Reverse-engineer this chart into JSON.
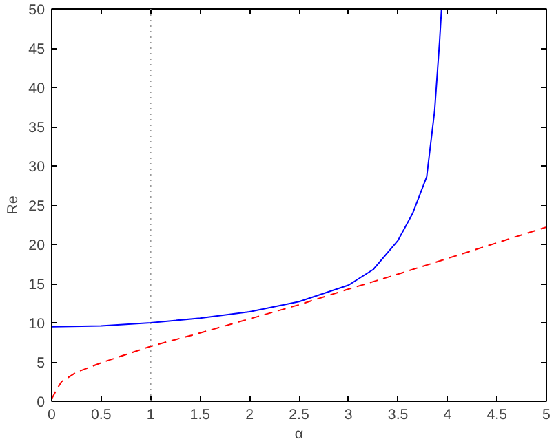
{
  "chart_data": {
    "type": "line",
    "xlabel": "α",
    "ylabel": "Re",
    "xlim": [
      0,
      5
    ],
    "ylim": [
      0,
      50
    ],
    "xticks": [
      0,
      0.5,
      1,
      1.5,
      2,
      2.5,
      3,
      3.5,
      4,
      4.5,
      5
    ],
    "yticks": [
      0,
      5,
      10,
      15,
      20,
      25,
      30,
      35,
      40,
      45,
      50
    ],
    "grid": false,
    "series": [
      {
        "color": "#0000ff",
        "line_style": "solid",
        "x": [
          0,
          0.5,
          1,
          1.5,
          2,
          2.5,
          3,
          3.25,
          3.5,
          3.65,
          3.79,
          3.87,
          3.92,
          3.94
        ],
        "values": [
          9.5,
          9.6,
          10,
          10.6,
          11.4,
          12.7,
          14.8,
          16.8,
          20.5,
          24,
          28.6,
          37,
          45.8,
          50
        ]
      },
      {
        "color": "#ff0000",
        "line_style": "dashed",
        "x": [
          0,
          0.05,
          0.1,
          0.25,
          0.5,
          1,
          1.5,
          2,
          2.5,
          3,
          3.5,
          4,
          4.5,
          5
        ],
        "values": [
          0.3,
          1.5,
          2.5,
          3.7,
          4.9,
          7,
          8.7,
          10.5,
          12.3,
          14.3,
          16.2,
          18.2,
          20.2,
          22.2
        ]
      }
    ],
    "ref_lines": [
      {
        "axis": "x",
        "value": 1,
        "color": "#999999",
        "line_style": "dotted"
      }
    ]
  }
}
